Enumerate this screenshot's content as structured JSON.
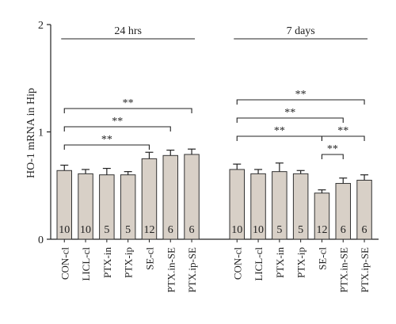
{
  "chart_data": {
    "type": "bar",
    "ylabel": "HO-1 mRNA in Hip",
    "ylim": [
      0,
      2
    ],
    "yticks": [
      0,
      1,
      2
    ],
    "grid": false,
    "bar_color": "#d8d0c7",
    "error_bar_color": "#222222",
    "groups": [
      {
        "label": "24 hrs",
        "categories": [
          "CON-cl",
          "LICL-cl",
          "PTX-in",
          "PTX-ip",
          "SE-cl",
          "PTX.in-SE",
          "PTX.ip-SE"
        ],
        "values": [
          0.64,
          0.61,
          0.6,
          0.6,
          0.75,
          0.78,
          0.79
        ],
        "errors": [
          0.05,
          0.04,
          0.06,
          0.03,
          0.06,
          0.05,
          0.05
        ],
        "n": [
          "10",
          "10",
          "5",
          "5",
          "12",
          "6",
          "6"
        ],
        "brackets": [
          {
            "from": 0,
            "to": 6,
            "level": 2,
            "label": "**"
          },
          {
            "from": 0,
            "to": 5,
            "level": 1,
            "label": "**"
          },
          {
            "from": 0,
            "to": 4,
            "level": 0,
            "label": "**"
          }
        ]
      },
      {
        "label": "7 days",
        "categories": [
          "CON-cl",
          "LICL-cl",
          "PTX-in",
          "PTX-ip",
          "SE-cl",
          "PTX.in-SE",
          "PTX.ip-SE"
        ],
        "values": [
          0.65,
          0.61,
          0.63,
          0.61,
          0.43,
          0.52,
          0.55
        ],
        "errors": [
          0.05,
          0.04,
          0.08,
          0.03,
          0.03,
          0.05,
          0.05
        ],
        "n": [
          "10",
          "10",
          "5",
          "5",
          "12",
          "6",
          "6"
        ],
        "brackets": [
          {
            "from": 0,
            "to": 6,
            "level": 3,
            "label": "**"
          },
          {
            "from": 0,
            "to": 5,
            "level": 2,
            "label": "**"
          },
          {
            "from": 0,
            "to": 4,
            "level": 1,
            "label": "**"
          },
          {
            "from": 4,
            "to": 6,
            "level": 1,
            "label": "**"
          },
          {
            "from": 4,
            "to": 5,
            "level": 0,
            "label": "**"
          }
        ]
      }
    ]
  }
}
